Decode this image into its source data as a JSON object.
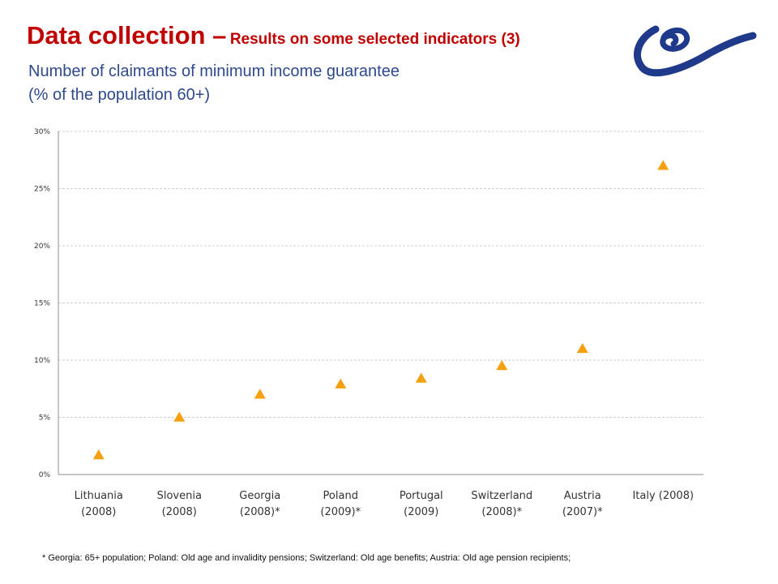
{
  "header": {
    "title_main": "Data collection –",
    "title_sub": "Results on some selected indicators (3)",
    "subtitle_line1": "Number of claimants  of minimum income guarantee",
    "subtitle_line2": "(% of the population 60+)"
  },
  "footnote": "* Georgia: 65+ population; Poland: Old age and invalidity pensions; Switzerland: Old age benefits; Austria: Old age pension recipients;",
  "colors": {
    "title": "#c00000",
    "subtitle": "#2e4a8c",
    "marker": "#f5a00f",
    "logo": "#1f3a8a"
  },
  "logo_icon": "council-of-europe-logo-icon",
  "chart_data": {
    "type": "scatter",
    "marker": "triangle",
    "categories": [
      [
        "Lithuania",
        "(2008)"
      ],
      [
        "Slovenia",
        "(2008)"
      ],
      [
        "Georgia",
        "(2008)*"
      ],
      [
        "Poland",
        "(2009)*"
      ],
      [
        "Portugal",
        "(2009)"
      ],
      [
        "Switzerland",
        "(2008)*"
      ],
      [
        "Austria",
        "(2007)*"
      ],
      [
        "Italy (2008)"
      ]
    ],
    "values": [
      1.7,
      5.0,
      7.0,
      7.9,
      8.4,
      9.5,
      11.0,
      27.0
    ],
    "ylim": [
      0,
      30
    ],
    "yticks": [
      0,
      5,
      10,
      15,
      20,
      25,
      30
    ],
    "ytick_labels": [
      "0%",
      "5%",
      "10%",
      "15%",
      "20%",
      "25%",
      "30%"
    ],
    "grid": true
  }
}
